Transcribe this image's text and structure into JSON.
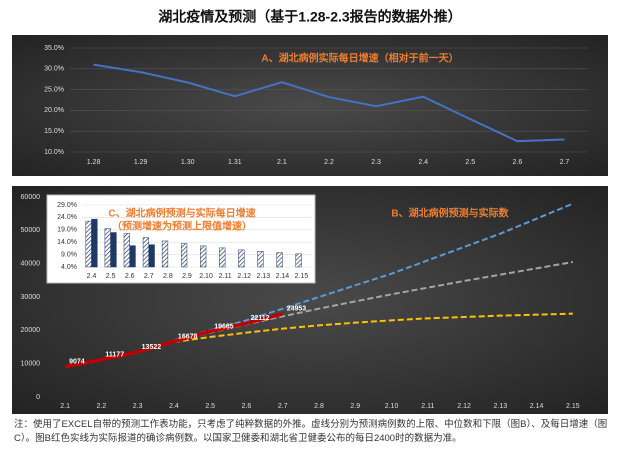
{
  "title": "湖北疫情及预测（基于1.28-2.3报告的数据外推）",
  "note": "注：使用了EXCEL自带的预测工作表功能，只考虑了纯粹数据的外推。虚线分别为预测病例数的上限、中位数和下限（图B）、及每日增速（图C）。图B红色实线为实际报道的确诊病例数。以国家卫健委和湖北省卫健委公布的每日2400时的数据为准。",
  "chart_data": [
    {
      "type": "line",
      "annotation": "A、湖北病例实际每日增速（相对于前一天）",
      "categories": [
        "1.28",
        "1.29",
        "1.30",
        "1.31",
        "2.1",
        "2.2",
        "2.3",
        "2.4",
        "2.5",
        "2.6",
        "2.7"
      ],
      "series": [
        {
          "color": "#4472c4",
          "values": [
            31.0,
            29.2,
            26.7,
            23.4,
            26.8,
            23.2,
            21.0,
            23.3,
            17.9,
            12.6,
            13.0
          ]
        }
      ],
      "ylim": [
        10,
        35
      ],
      "yticks": [
        {
          "value": 10,
          "label": "10.0%"
        },
        {
          "value": 15,
          "label": "15.0%"
        },
        {
          "value": 20,
          "label": "20.0%"
        },
        {
          "value": 25,
          "label": "25.0%"
        },
        {
          "value": 30,
          "label": "30.0%"
        },
        {
          "value": 35,
          "label": "35.0%"
        }
      ],
      "grid": true
    },
    {
      "type": "line",
      "annotation": "B、湖北病例预测与实际数",
      "categories": [
        "2.1",
        "2.2",
        "2.3",
        "2.4",
        "2.5",
        "2.6",
        "2.7",
        "2.8",
        "2.9",
        "2.10",
        "2.11",
        "2.12",
        "2.13",
        "2.14",
        "2.15"
      ],
      "series": [
        {
          "color": "#5b9bd5",
          "dashed": true,
          "values": [
            null,
            null,
            null,
            17000,
            20000,
            23000,
            26500,
            30000,
            33500,
            37000,
            41000,
            45000,
            49000,
            53500,
            58000
          ]
        },
        {
          "color": "#a5a5a5",
          "dashed": true,
          "values": [
            null,
            null,
            null,
            16700,
            19300,
            21800,
            24200,
            26500,
            28700,
            30800,
            32800,
            34800,
            36700,
            38600,
            40500
          ]
        },
        {
          "color": "#ffc000",
          "dashed": true,
          "values": [
            null,
            null,
            null,
            16500,
            18000,
            19300,
            20500,
            21500,
            22300,
            23000,
            23600,
            24000,
            24400,
            24700,
            25000
          ]
        },
        {
          "color": "#c00000",
          "data_labels": true,
          "values": [
            9074,
            11177,
            13522,
            16678,
            19665,
            22112,
            24953,
            null,
            null,
            null,
            null,
            null,
            null,
            null,
            null
          ]
        }
      ],
      "ylim": [
        0,
        60000
      ],
      "yticks": [
        0,
        10000,
        20000,
        30000,
        40000,
        50000,
        60000
      ],
      "grid": false
    },
    {
      "type": "bar",
      "title": "C、湖北病例预测与实际每日增速",
      "subtitle": "（预测增速为预测上限值增速）",
      "categories": [
        "2.4",
        "2.5",
        "2.6",
        "2.7",
        "2.8",
        "2.9",
        "2.10",
        "2.11",
        "2.12",
        "2.13",
        "2.14",
        "2.15"
      ],
      "series": [
        {
          "color": "#1f3864",
          "hatch": true,
          "values": [
            22.5,
            19.5,
            17.5,
            15.8,
            14.5,
            13.5,
            12.5,
            11.7,
            10.9,
            10.3,
            9.8,
            9.3
          ]
        },
        {
          "color": "#1f3864",
          "values": [
            23.3,
            17.9,
            12.6,
            13.0,
            null,
            null,
            null,
            null,
            null,
            null,
            null,
            null
          ]
        }
      ],
      "ylim": [
        4,
        29
      ],
      "yticks": [
        {
          "value": 4,
          "label": "4.0%"
        },
        {
          "value": 9,
          "label": "9.0%"
        },
        {
          "value": 14,
          "label": "14.0%"
        },
        {
          "value": 19,
          "label": "19.0%"
        },
        {
          "value": 24,
          "label": "24.0%"
        },
        {
          "value": 29,
          "label": "29.0%"
        }
      ],
      "grid": true
    }
  ]
}
